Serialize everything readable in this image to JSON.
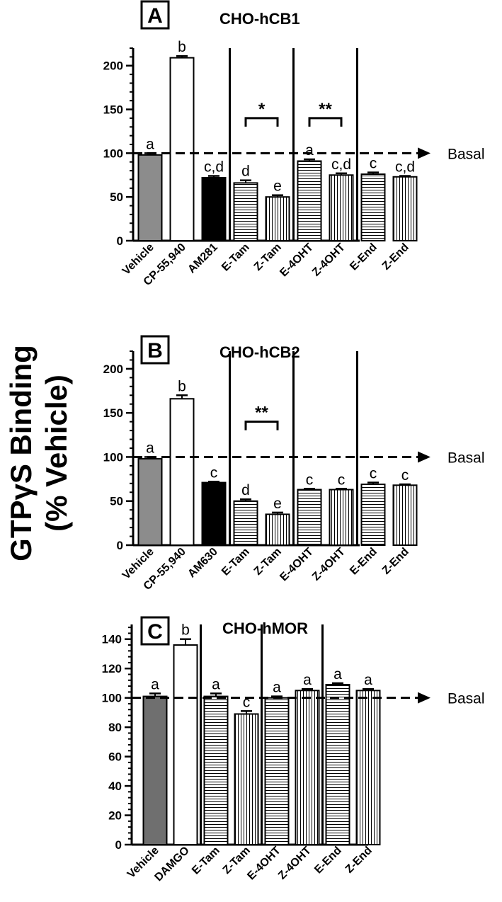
{
  "ylabel_line1": "GTPγS Binding",
  "ylabel_line2": "(% Vehicle)",
  "reference_label": "Basal",
  "chart_data": [
    {
      "type": "bar",
      "panel": "A",
      "title": "CHO-hCB1",
      "ylim": [
        0,
        220
      ],
      "yticks": [
        0,
        50,
        100,
        150,
        200
      ],
      "reference_line": 100,
      "categories": [
        "Vehicle",
        "CP-55,940",
        "AM281",
        "E-Tam",
        "Z-Tam",
        "E-4OHT",
        "Z-4OHT",
        "E-End",
        "Z-End"
      ],
      "values": [
        98,
        209,
        72,
        66,
        50,
        91,
        75,
        76,
        73
      ],
      "errors": [
        2,
        2,
        2,
        3,
        2,
        2,
        2,
        2,
        1
      ],
      "letters": [
        "a",
        "b",
        "c,d",
        "d",
        "e",
        "a",
        "c,d",
        "c",
        "c,d"
      ],
      "fills": [
        "gray",
        "white",
        "black",
        "hlines",
        "vlines",
        "hlines",
        "vlines",
        "hlines",
        "vlines"
      ],
      "separators_after": [
        2,
        4,
        6
      ],
      "significance": [
        {
          "from": 3,
          "to": 4,
          "label": "*",
          "y": 140
        },
        {
          "from": 5,
          "to": 6,
          "label": "**",
          "y": 140
        }
      ]
    },
    {
      "type": "bar",
      "panel": "B",
      "title": "CHO-hCB2",
      "ylim": [
        0,
        220
      ],
      "yticks": [
        0,
        50,
        100,
        150,
        200
      ],
      "reference_line": 100,
      "categories": [
        "Vehicle",
        "CP-55,940",
        "AM630",
        "E-Tam",
        "Z-Tam",
        "E-4OHT",
        "Z-4OHT",
        "E-End",
        "Z-End"
      ],
      "values": [
        98,
        166,
        71,
        50,
        35,
        63,
        63,
        69,
        68
      ],
      "errors": [
        2,
        4,
        1,
        2,
        2,
        1,
        1,
        2,
        1
      ],
      "letters": [
        "a",
        "b",
        "c",
        "d",
        "e",
        "c",
        "c",
        "c",
        "c"
      ],
      "fills": [
        "gray",
        "white",
        "black",
        "hlines",
        "vlines",
        "hlines",
        "vlines",
        "hlines",
        "vlines"
      ],
      "separators_after": [
        2,
        4,
        6
      ],
      "significance": [
        {
          "from": 3,
          "to": 4,
          "label": "**",
          "y": 140
        }
      ]
    },
    {
      "type": "bar",
      "panel": "C",
      "title": "CHO-hMOR",
      "ylim": [
        0,
        150
      ],
      "yticks": [
        0,
        20,
        40,
        60,
        80,
        100,
        120,
        140
      ],
      "reference_line": 100,
      "categories": [
        "Vehicle",
        "DAMGO",
        "E-Tam",
        "Z-Tam",
        "E-4OHT",
        "Z-4OHT",
        "E-End",
        "Z-End"
      ],
      "values": [
        101,
        136,
        101,
        89,
        100,
        105,
        109,
        105
      ],
      "errors": [
        2,
        4,
        2,
        2,
        1,
        1,
        1,
        1
      ],
      "letters": [
        "a",
        "b",
        "a",
        "c",
        "a",
        "a",
        "a",
        "a"
      ],
      "fills": [
        "darkgray",
        "white",
        "hlines",
        "vlines",
        "hlines",
        "vlines",
        "hlines",
        "vlines"
      ],
      "separators_after": [
        1,
        3,
        5
      ],
      "significance": []
    }
  ]
}
